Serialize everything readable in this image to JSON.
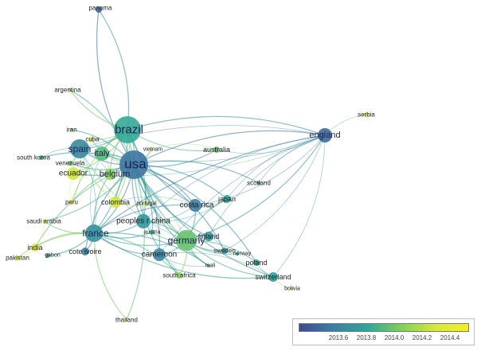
{
  "network": {
    "nodes": [
      {
        "id": "panama",
        "label": "panama",
        "score": 2013.6
      },
      {
        "id": "argentina",
        "label": "argentina",
        "score": 2014.3
      },
      {
        "id": "iran",
        "label": "iran",
        "score": 2014.2
      },
      {
        "id": "cuba",
        "label": "cuba",
        "score": 2014.5
      },
      {
        "id": "brazil",
        "label": "brazil",
        "score": 2013.95
      },
      {
        "id": "spain",
        "label": "spain",
        "score": 2013.75
      },
      {
        "id": "italy",
        "label": "italy",
        "score": 2014.05
      },
      {
        "id": "vietnam",
        "label": "vietnam",
        "score": 2014.4
      },
      {
        "id": "south_korea",
        "label": "south korea",
        "score": 2014.0
      },
      {
        "id": "venezuela",
        "label": "venezuela",
        "score": 2014.1
      },
      {
        "id": "ecuador",
        "label": "ecuador",
        "score": 2014.4
      },
      {
        "id": "belgium",
        "label": "belgium",
        "score": 2014.2
      },
      {
        "id": "usa",
        "label": "usa",
        "score": 2013.65
      },
      {
        "id": "australia",
        "label": "australia",
        "score": 2014.1
      },
      {
        "id": "england",
        "label": "england",
        "score": 2013.6
      },
      {
        "id": "serbia",
        "label": "serbia",
        "score": 2014.5
      },
      {
        "id": "scotland",
        "label": "scotland",
        "score": 2013.8
      },
      {
        "id": "japan",
        "label": "japan",
        "score": 2013.9
      },
      {
        "id": "peru",
        "label": "peru",
        "score": 2014.5
      },
      {
        "id": "colombia",
        "label": "colombia",
        "score": 2014.4
      },
      {
        "id": "portugal",
        "label": "portugal",
        "score": 2014.3
      },
      {
        "id": "costa_rica",
        "label": "costa rica",
        "score": 2013.7
      },
      {
        "id": "saudi_arabia",
        "label": "saudi arabia",
        "score": 2014.4
      },
      {
        "id": "peoples_r_china",
        "label": "peoples r china",
        "score": 2013.85
      },
      {
        "id": "austria",
        "label": "austria",
        "score": 2014.0
      },
      {
        "id": "france",
        "label": "france",
        "score": 2013.8
      },
      {
        "id": "germany",
        "label": "germany",
        "score": 2014.1
      },
      {
        "id": "finland",
        "label": "finland",
        "score": 2013.85
      },
      {
        "id": "india",
        "label": "india",
        "score": 2014.5
      },
      {
        "id": "pakistan",
        "label": "pakistan",
        "score": 2014.6
      },
      {
        "id": "gabon",
        "label": "gabon",
        "score": 2014.0
      },
      {
        "id": "cote_divoire",
        "label": "cote ivoire",
        "score": 2013.7
      },
      {
        "id": "sweden",
        "label": "sweden",
        "score": 2013.8
      },
      {
        "id": "norway",
        "label": "norway",
        "score": 2013.9
      },
      {
        "id": "cameroon",
        "label": "cameroon",
        "score": 2013.75
      },
      {
        "id": "poland",
        "label": "poland",
        "score": 2013.9
      },
      {
        "id": "mali",
        "label": "mali",
        "score": 2014.0
      },
      {
        "id": "south_africa",
        "label": "south africa",
        "score": 2014.2
      },
      {
        "id": "switzerland",
        "label": "switzerland",
        "score": 2013.9
      },
      {
        "id": "bolivia",
        "label": "bolivia",
        "score": 2014.5
      },
      {
        "id": "thailand",
        "label": "thailand",
        "score": 2014.5
      }
    ],
    "links": [
      [
        "usa",
        "brazil"
      ],
      [
        "usa",
        "spain"
      ],
      [
        "usa",
        "italy"
      ],
      [
        "usa",
        "france"
      ],
      [
        "usa",
        "germany"
      ],
      [
        "usa",
        "england"
      ],
      [
        "usa",
        "peoples_r_china"
      ],
      [
        "usa",
        "costa_rica"
      ],
      [
        "usa",
        "colombia"
      ],
      [
        "usa",
        "ecuador"
      ],
      [
        "usa",
        "belgium"
      ],
      [
        "usa",
        "japan"
      ],
      [
        "usa",
        "australia"
      ],
      [
        "usa",
        "panama"
      ],
      [
        "usa",
        "argentina"
      ],
      [
        "usa",
        "cameroon"
      ],
      [
        "usa",
        "peru"
      ],
      [
        "usa",
        "portugal"
      ],
      [
        "usa",
        "switzerland"
      ],
      [
        "usa",
        "scotland"
      ],
      [
        "usa",
        "india"
      ],
      [
        "usa",
        "austria"
      ],
      [
        "usa",
        "finland"
      ],
      [
        "usa",
        "sweden"
      ],
      [
        "usa",
        "vietnam"
      ],
      [
        "usa",
        "cuba"
      ],
      [
        "usa",
        "iran"
      ],
      [
        "usa",
        "venezuela"
      ],
      [
        "usa",
        "south_africa"
      ],
      [
        "usa",
        "thailand"
      ],
      [
        "usa",
        "cote_divoire"
      ],
      [
        "usa",
        "poland"
      ],
      [
        "usa",
        "mali"
      ],
      [
        "usa",
        "saudi_arabia"
      ],
      [
        "usa",
        "south_korea"
      ],
      [
        "brazil",
        "spain"
      ],
      [
        "brazil",
        "italy"
      ],
      [
        "brazil",
        "france"
      ],
      [
        "brazil",
        "germany"
      ],
      [
        "brazil",
        "england"
      ],
      [
        "brazil",
        "panama"
      ],
      [
        "brazil",
        "ecuador"
      ],
      [
        "brazil",
        "belgium"
      ],
      [
        "brazil",
        "colombia"
      ],
      [
        "brazil",
        "peru"
      ],
      [
        "brazil",
        "argentina"
      ],
      [
        "brazil",
        "australia"
      ],
      [
        "brazil",
        "cuba"
      ],
      [
        "brazil",
        "costa_rica"
      ],
      [
        "brazil",
        "peoples_r_china"
      ],
      [
        "spain",
        "italy"
      ],
      [
        "spain",
        "france"
      ],
      [
        "spain",
        "ecuador"
      ],
      [
        "spain",
        "belgium"
      ],
      [
        "spain",
        "germany"
      ],
      [
        "spain",
        "england"
      ],
      [
        "spain",
        "colombia"
      ],
      [
        "spain",
        "venezuela"
      ],
      [
        "spain",
        "south_korea"
      ],
      [
        "spain",
        "peru"
      ],
      [
        "italy",
        "france"
      ],
      [
        "italy",
        "germany"
      ],
      [
        "italy",
        "england"
      ],
      [
        "italy",
        "belgium"
      ],
      [
        "france",
        "germany"
      ],
      [
        "france",
        "england"
      ],
      [
        "france",
        "cameroon"
      ],
      [
        "france",
        "cote_divoire"
      ],
      [
        "france",
        "india"
      ],
      [
        "france",
        "belgium"
      ],
      [
        "france",
        "peoples_r_china"
      ],
      [
        "france",
        "saudi_arabia"
      ],
      [
        "france",
        "pakistan"
      ],
      [
        "france",
        "gabon"
      ],
      [
        "france",
        "switzerland"
      ],
      [
        "france",
        "south_africa"
      ],
      [
        "france",
        "thailand"
      ],
      [
        "france",
        "mali"
      ],
      [
        "france",
        "austria"
      ],
      [
        "france",
        "costa_rica"
      ],
      [
        "germany",
        "england"
      ],
      [
        "germany",
        "finland"
      ],
      [
        "germany",
        "sweden"
      ],
      [
        "germany",
        "poland"
      ],
      [
        "germany",
        "switzerland"
      ],
      [
        "germany",
        "cameroon"
      ],
      [
        "germany",
        "peoples_r_china"
      ],
      [
        "germany",
        "austria"
      ],
      [
        "germany",
        "costa_rica"
      ],
      [
        "germany",
        "japan"
      ],
      [
        "germany",
        "mali"
      ],
      [
        "germany",
        "south_africa"
      ],
      [
        "germany",
        "norway"
      ],
      [
        "england",
        "australia"
      ],
      [
        "england",
        "scotland"
      ],
      [
        "england",
        "serbia"
      ],
      [
        "england",
        "japan"
      ],
      [
        "england",
        "costa_rica"
      ],
      [
        "england",
        "peoples_r_china"
      ],
      [
        "england",
        "switzerland"
      ],
      [
        "england",
        "finland"
      ],
      [
        "england",
        "sweden"
      ],
      [
        "england",
        "cameroon"
      ],
      [
        "england",
        "ecuador"
      ],
      [
        "costa_rica",
        "japan"
      ],
      [
        "costa_rica",
        "peoples_r_china"
      ],
      [
        "costa_rica",
        "colombia"
      ],
      [
        "cameroon",
        "south_africa"
      ],
      [
        "cameroon",
        "mali"
      ],
      [
        "cameroon",
        "switzerland"
      ],
      [
        "switzerland",
        "bolivia"
      ],
      [
        "switzerland",
        "poland"
      ],
      [
        "sweden",
        "finland"
      ],
      [
        "india",
        "pakistan"
      ],
      [
        "india",
        "saudi_arabia"
      ],
      [
        "ecuador",
        "colombia"
      ],
      [
        "ecuador",
        "peru"
      ],
      [
        "belgium",
        "colombia"
      ],
      [
        "belgium",
        "ecuador"
      ],
      [
        "vietnam",
        "australia"
      ],
      [
        "colombia",
        "portugal"
      ],
      [
        "peoples_r_china",
        "austria"
      ],
      [
        "peoples_r_china",
        "japan"
      ]
    ]
  },
  "legend": {
    "colors": [
      "#3f4a94",
      "#3d7ea3",
      "#2ea59a",
      "#7ecf5b",
      "#d6e83a",
      "#f5ef26"
    ],
    "range": [
      2013.45,
      2014.65
    ],
    "ticks": [
      "2013.6",
      "2013.8",
      "2014.0",
      "2014.2",
      "2014.4"
    ]
  }
}
